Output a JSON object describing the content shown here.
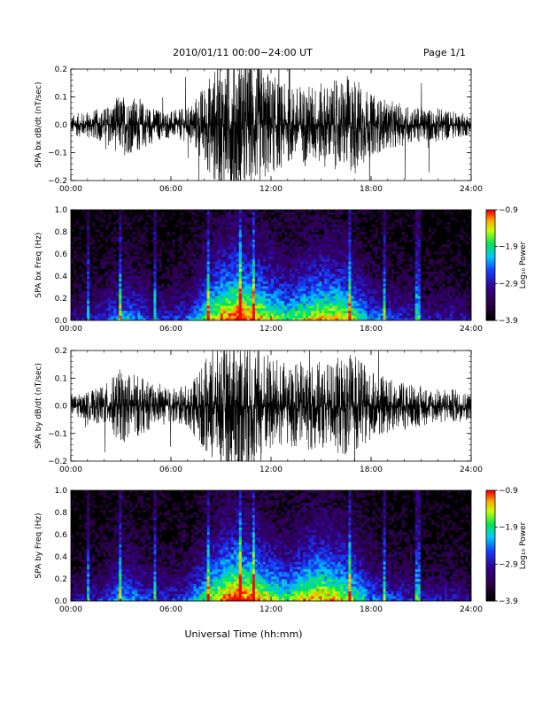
{
  "header": {
    "title": "2010/01/11   00:00−24:00 UT",
    "page": "Page 1/1"
  },
  "xlabel": "Universal Time (hh:mm)",
  "chart_data": [
    {
      "type": "line",
      "panel": "bx-dbdt",
      "ylabel": "SPA bx dB/dt (nT/sec)",
      "xlim": [
        0,
        24
      ],
      "ylim": [
        -0.2,
        0.2
      ],
      "xticks": [
        "00:00",
        "06:00",
        "12:00",
        "18:00",
        "24:00"
      ],
      "yticks": [
        "−0.2",
        "−0.1",
        "0.0",
        "0.1",
        "0.2"
      ],
      "series": [
        {
          "color": "#000000",
          "amplitude_envelope": {
            "hours": [
              0,
              1,
              2,
              3,
              4,
              5,
              6,
              7,
              8,
              9,
              10,
              11,
              12,
              13,
              14,
              15,
              16,
              17,
              18,
              19,
              20,
              21,
              22,
              23,
              24
            ],
            "amp": [
              0.03,
              0.04,
              0.05,
              0.09,
              0.08,
              0.05,
              0.04,
              0.05,
              0.12,
              0.2,
              0.22,
              0.2,
              0.15,
              0.11,
              0.12,
              0.12,
              0.13,
              0.15,
              0.09,
              0.07,
              0.06,
              0.05,
              0.05,
              0.04,
              0.03
            ]
          }
        }
      ]
    },
    {
      "type": "heatmap",
      "panel": "bx-spectrogram",
      "ylabel": "SPA bx Freq (Hz)",
      "xlim": [
        0,
        24
      ],
      "ylim": [
        0.0,
        1.0
      ],
      "xticks": [
        "00:00",
        "06:00",
        "12:00",
        "18:00",
        "24:00"
      ],
      "yticks": [
        "0.0",
        "0.2",
        "0.4",
        "0.6",
        "0.8",
        "1.0"
      ],
      "colorbar": {
        "label": "Log₁₀ Power",
        "range": [
          -3.9,
          -0.9
        ],
        "ticks": [
          "−0.9",
          "−1.9",
          "−2.9",
          "−3.9"
        ]
      },
      "activity": {
        "hours": [
          0,
          1,
          2,
          3,
          4,
          5,
          6,
          7,
          8,
          9,
          10,
          11,
          12,
          13,
          14,
          15,
          16,
          17,
          18,
          19,
          20,
          21,
          22,
          23,
          24
        ],
        "level": [
          0.25,
          0.3,
          0.35,
          0.5,
          0.45,
          0.35,
          0.35,
          0.4,
          0.6,
          0.8,
          0.9,
          0.8,
          0.7,
          0.6,
          0.7,
          0.75,
          0.75,
          0.65,
          0.45,
          0.4,
          0.35,
          0.3,
          0.3,
          0.3,
          0.25
        ]
      },
      "bright_columns_hours": [
        1.1,
        3.0,
        5.0,
        8.2,
        10.1,
        11.0,
        16.7,
        18.8,
        20.8
      ]
    },
    {
      "type": "line",
      "panel": "by-dbdt",
      "ylabel": "SPA by dB/dt (nT/sec)",
      "xlim": [
        0,
        24
      ],
      "ylim": [
        -0.2,
        0.2
      ],
      "xticks": [
        "00:00",
        "06:00",
        "12:00",
        "18:00",
        "24:00"
      ],
      "yticks": [
        "−0.2",
        "−0.1",
        "0.0",
        "0.1",
        "0.2"
      ],
      "series": [
        {
          "color": "#000000",
          "amplitude_envelope": {
            "hours": [
              0,
              1,
              2,
              3,
              4,
              5,
              6,
              7,
              8,
              9,
              10,
              11,
              12,
              13,
              14,
              15,
              16,
              17,
              18,
              19,
              20,
              21,
              22,
              23,
              24
            ],
            "amp": [
              0.03,
              0.04,
              0.06,
              0.11,
              0.09,
              0.06,
              0.05,
              0.06,
              0.13,
              0.2,
              0.22,
              0.2,
              0.15,
              0.12,
              0.13,
              0.13,
              0.14,
              0.15,
              0.1,
              0.08,
              0.07,
              0.06,
              0.05,
              0.05,
              0.04
            ]
          }
        }
      ]
    },
    {
      "type": "heatmap",
      "panel": "by-spectrogram",
      "ylabel": "SPA by Freq (Hz)",
      "xlim": [
        0,
        24
      ],
      "ylim": [
        0.0,
        1.0
      ],
      "xticks": [
        "00:00",
        "06:00",
        "12:00",
        "18:00",
        "24:00"
      ],
      "yticks": [
        "0.0",
        "0.2",
        "0.4",
        "0.6",
        "0.8",
        "1.0"
      ],
      "colorbar": {
        "label": "Log₁₀ Power",
        "range": [
          -3.9,
          -0.9
        ],
        "ticks": [
          "−0.9",
          "−1.9",
          "−2.9",
          "−3.9"
        ]
      },
      "activity": {
        "hours": [
          0,
          1,
          2,
          3,
          4,
          5,
          6,
          7,
          8,
          9,
          10,
          11,
          12,
          13,
          14,
          15,
          16,
          17,
          18,
          19,
          20,
          21,
          22,
          23,
          24
        ],
        "level": [
          0.25,
          0.3,
          0.35,
          0.5,
          0.45,
          0.35,
          0.35,
          0.4,
          0.6,
          0.8,
          0.9,
          0.8,
          0.7,
          0.6,
          0.75,
          0.8,
          0.75,
          0.65,
          0.45,
          0.4,
          0.35,
          0.3,
          0.3,
          0.3,
          0.25
        ]
      },
      "bright_columns_hours": [
        1.1,
        3.0,
        5.0,
        8.2,
        10.1,
        11.0,
        16.7,
        18.8,
        20.8
      ]
    }
  ]
}
